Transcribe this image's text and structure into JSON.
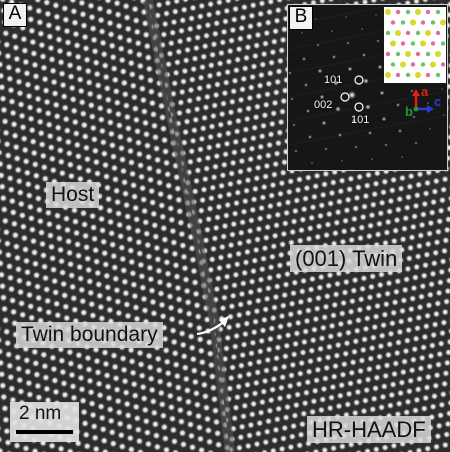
{
  "panels": {
    "a": "A",
    "b": "B"
  },
  "labels": {
    "host": "Host",
    "twin": "(001) Twin",
    "boundary": "Twin boundary",
    "scale": "2 nm",
    "mode": "HR-HAADF"
  },
  "diffraction": {
    "spot_top": "101",
    "spot_mid": "002",
    "spot_bottom": "101"
  },
  "axes": {
    "a": {
      "label": "a",
      "color": "#e0201b"
    },
    "b": {
      "label": "b",
      "color": "#1f9a3a"
    },
    "c": {
      "label": "c",
      "color": "#2a3fd0"
    }
  },
  "colors": {
    "atom": "#e8e8e8",
    "background": "#2a2a2a",
    "label_box": "#d7d7d7",
    "crystal_yellow": "#d9d92a",
    "crystal_pink": "#e06aa0",
    "crystal_green": "#6ac26a"
  }
}
